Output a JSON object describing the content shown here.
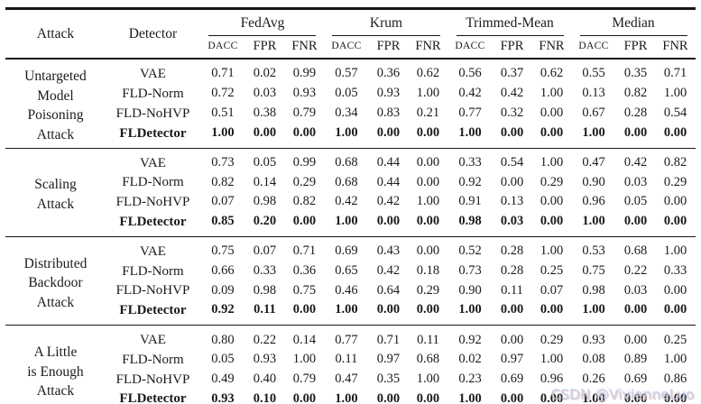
{
  "page": {
    "watermark": {
      "text": "CSDN @VivienneLuo",
      "color": "#c3c6cf"
    }
  },
  "table": {
    "header": {
      "attack": "Attack",
      "detector": "Detector",
      "sub_metrics": [
        "DACC",
        "FPR",
        "FNR"
      ]
    },
    "col_groups": [
      {
        "label": "FedAvg"
      },
      {
        "label": "Krum"
      },
      {
        "label": "Trimmed-Mean"
      },
      {
        "label": "Median"
      }
    ],
    "groups": [
      {
        "attack_lines": [
          "Untargeted",
          "Model",
          "Poisoning",
          "Attack"
        ],
        "rows": [
          {
            "detector": "VAE",
            "bold": false,
            "values": [
              "0.71",
              "0.02",
              "0.99",
              "0.57",
              "0.36",
              "0.62",
              "0.56",
              "0.37",
              "0.62",
              "0.55",
              "0.35",
              "0.71"
            ]
          },
          {
            "detector": "FLD-Norm",
            "bold": false,
            "values": [
              "0.72",
              "0.03",
              "0.93",
              "0.05",
              "0.93",
              "1.00",
              "0.42",
              "0.42",
              "1.00",
              "0.13",
              "0.82",
              "1.00"
            ]
          },
          {
            "detector": "FLD-NoHVP",
            "bold": false,
            "values": [
              "0.51",
              "0.38",
              "0.79",
              "0.34",
              "0.83",
              "0.21",
              "0.77",
              "0.32",
              "0.00",
              "0.67",
              "0.28",
              "0.54"
            ]
          },
          {
            "detector": "FLDetector",
            "bold": true,
            "values": [
              "1.00",
              "0.00",
              "0.00",
              "1.00",
              "0.00",
              "0.00",
              "1.00",
              "0.00",
              "0.00",
              "1.00",
              "0.00",
              "0.00"
            ]
          }
        ]
      },
      {
        "attack_lines": [
          "Scaling",
          "Attack"
        ],
        "rows": [
          {
            "detector": "VAE",
            "bold": false,
            "values": [
              "0.73",
              "0.05",
              "0.99",
              "0.68",
              "0.44",
              "0.00",
              "0.33",
              "0.54",
              "1.00",
              "0.47",
              "0.42",
              "0.82"
            ]
          },
          {
            "detector": "FLD-Norm",
            "bold": false,
            "values": [
              "0.82",
              "0.14",
              "0.29",
              "0.68",
              "0.44",
              "0.00",
              "0.92",
              "0.00",
              "0.29",
              "0.90",
              "0.03",
              "0.29"
            ]
          },
          {
            "detector": "FLD-NoHVP",
            "bold": false,
            "values": [
              "0.07",
              "0.98",
              "0.82",
              "0.42",
              "0.42",
              "1.00",
              "0.91",
              "0.13",
              "0.00",
              "0.96",
              "0.05",
              "0.00"
            ]
          },
          {
            "detector": "FLDetector",
            "bold": true,
            "values": [
              "0.85",
              "0.20",
              "0.00",
              "1.00",
              "0.00",
              "0.00",
              "0.98",
              "0.03",
              "0.00",
              "1.00",
              "0.00",
              "0.00"
            ]
          }
        ]
      },
      {
        "attack_lines": [
          "Distributed",
          "Backdoor",
          "Attack"
        ],
        "rows": [
          {
            "detector": "VAE",
            "bold": false,
            "values": [
              "0.75",
              "0.07",
              "0.71",
              "0.69",
              "0.43",
              "0.00",
              "0.52",
              "0.28",
              "1.00",
              "0.53",
              "0.68",
              "1.00"
            ]
          },
          {
            "detector": "FLD-Norm",
            "bold": false,
            "values": [
              "0.66",
              "0.33",
              "0.36",
              "0.65",
              "0.42",
              "0.18",
              "0.73",
              "0.28",
              "0.25",
              "0.75",
              "0.22",
              "0.33"
            ]
          },
          {
            "detector": "FLD-NoHVP",
            "bold": false,
            "values": [
              "0.09",
              "0.98",
              "0.75",
              "0.46",
              "0.64",
              "0.29",
              "0.90",
              "0.11",
              "0.07",
              "0.98",
              "0.03",
              "0.00"
            ]
          },
          {
            "detector": "FLDetector",
            "bold": true,
            "values": [
              "0.92",
              "0.11",
              "0.00",
              "1.00",
              "0.00",
              "0.00",
              "1.00",
              "0.00",
              "0.00",
              "1.00",
              "0.00",
              "0.00"
            ]
          }
        ]
      },
      {
        "attack_lines": [
          "A Little",
          "is Enough",
          "Attack"
        ],
        "rows": [
          {
            "detector": "VAE",
            "bold": false,
            "values": [
              "0.80",
              "0.22",
              "0.14",
              "0.77",
              "0.71",
              "0.11",
              "0.92",
              "0.00",
              "0.29",
              "0.93",
              "0.00",
              "0.25"
            ]
          },
          {
            "detector": "FLD-Norm",
            "bold": false,
            "values": [
              "0.05",
              "0.93",
              "1.00",
              "0.11",
              "0.97",
              "0.68",
              "0.02",
              "0.97",
              "1.00",
              "0.08",
              "0.89",
              "1.00"
            ]
          },
          {
            "detector": "FLD-NoHVP",
            "bold": false,
            "values": [
              "0.49",
              "0.40",
              "0.79",
              "0.47",
              "0.35",
              "1.00",
              "0.23",
              "0.69",
              "0.96",
              "0.26",
              "0.69",
              "0.86"
            ]
          },
          {
            "detector": "FLDetector",
            "bold": true,
            "values": [
              "0.93",
              "0.10",
              "0.00",
              "1.00",
              "0.00",
              "0.00",
              "1.00",
              "0.00",
              "0.00",
              "1.00",
              "0.00",
              "0.00"
            ]
          }
        ]
      }
    ]
  }
}
